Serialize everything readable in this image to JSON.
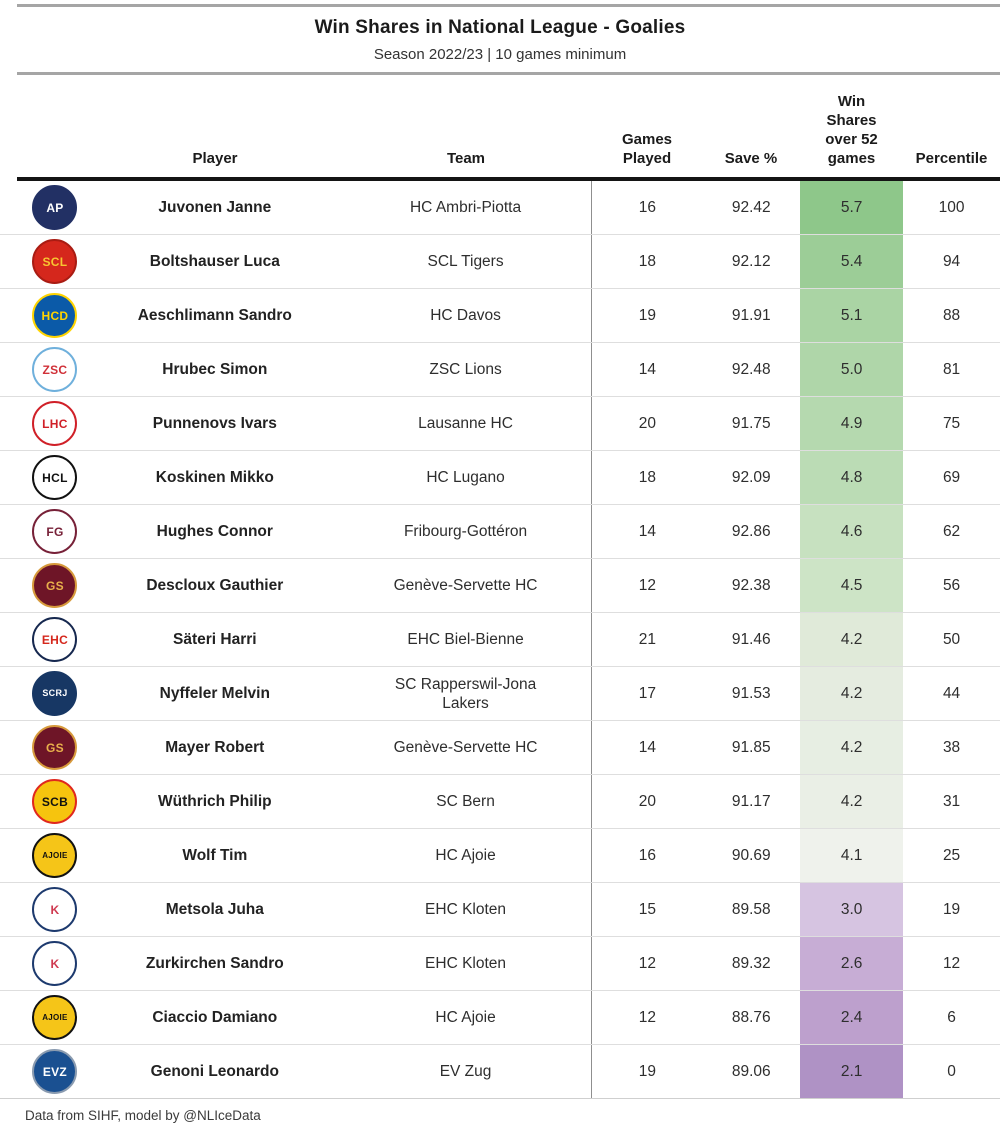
{
  "header": {
    "title": "Win Shares in National League - Goalies",
    "subtitle": "Season 2022/23 | 10 games minimum"
  },
  "column_headers": {
    "player": "Player",
    "team": "Team",
    "games_played": "Games\nPlayed",
    "save_pct": "Save %",
    "win_shares": "Win\nShares\nover 52\ngames",
    "percentile": "Percentile"
  },
  "footer": {
    "source": "Data from SIHF, model by @NLIceData"
  },
  "chart_data": {
    "type": "table",
    "title": "Win Shares in National League - Goalies",
    "subtitle": "Season 2022/23 | 10 games minimum",
    "columns": [
      "Player",
      "Team",
      "Games Played",
      "Save %",
      "Win Shares over 52 games",
      "Percentile"
    ],
    "color_scale": {
      "description": "Win Shares cell fill: green = high, near-white = middle, purple = low",
      "high": "#8ec78a",
      "mid": "#eef2eb",
      "low": "#af92c5"
    },
    "rows": [
      {
        "player": "Juvonen Janne",
        "team": "HC Ambri-Piotta",
        "games_played": 16,
        "save_pct": "92.42",
        "win_shares": "5.7",
        "percentile": 100,
        "ws_color": "#8ec78a",
        "logo": {
          "abbr": "AP",
          "bg": "#223064",
          "fg": "#ffffff",
          "border": "#223064"
        }
      },
      {
        "player": "Boltshauser Luca",
        "team": "SCL Tigers",
        "games_played": 18,
        "save_pct": "92.12",
        "win_shares": "5.4",
        "percentile": 94,
        "ws_color": "#9ccd97",
        "logo": {
          "abbr": "SCL",
          "bg": "#d5271c",
          "fg": "#f7c631",
          "border": "#a91c13"
        }
      },
      {
        "player": "Aeschlimann Sandro",
        "team": "HC Davos",
        "games_played": 19,
        "save_pct": "91.91",
        "win_shares": "5.1",
        "percentile": 88,
        "ws_color": "#aad4a4",
        "logo": {
          "abbr": "HCD",
          "bg": "#0b5aa8",
          "fg": "#ffd400",
          "border": "#ffd400"
        }
      },
      {
        "player": "Hrubec Simon",
        "team": "ZSC Lions",
        "games_played": 14,
        "save_pct": "92.48",
        "win_shares": "5.0",
        "percentile": 81,
        "ws_color": "#afd6a9",
        "logo": {
          "abbr": "ZSC",
          "bg": "#ffffff",
          "fg": "#d03038",
          "border": "#6fb0dc"
        }
      },
      {
        "player": "Punnenovs Ivars",
        "team": "Lausanne HC",
        "games_played": 20,
        "save_pct": "91.75",
        "win_shares": "4.9",
        "percentile": 75,
        "ws_color": "#b5d9af",
        "logo": {
          "abbr": "LHC",
          "bg": "#ffffff",
          "fg": "#d02028",
          "border": "#d02028"
        }
      },
      {
        "player": "Koskinen Mikko",
        "team": "HC Lugano",
        "games_played": 18,
        "save_pct": "92.09",
        "win_shares": "4.8",
        "percentile": 69,
        "ws_color": "#bbdcb5",
        "logo": {
          "abbr": "HCL",
          "bg": "#ffffff",
          "fg": "#111111",
          "border": "#111111"
        }
      },
      {
        "player": "Hughes Connor",
        "team": "Fribourg-Gottéron",
        "games_played": 14,
        "save_pct": "92.86",
        "win_shares": "4.6",
        "percentile": 62,
        "ws_color": "#c7e1c0",
        "logo": {
          "abbr": "FG",
          "bg": "#ffffff",
          "fg": "#772138",
          "border": "#772138"
        }
      },
      {
        "player": "Descloux Gauthier",
        "team": "Genève-Servette HC",
        "games_played": 12,
        "save_pct": "92.38",
        "win_shares": "4.5",
        "percentile": 56,
        "ws_color": "#cde4c6",
        "logo": {
          "abbr": "GS",
          "bg": "#6e1527",
          "fg": "#e8b04b",
          "border": "#d79a3c"
        }
      },
      {
        "player": "Säteri Harri",
        "team": "EHC Biel-Bienne",
        "games_played": 21,
        "save_pct": "91.46",
        "win_shares": "4.2",
        "percentile": 50,
        "ws_color": "#e0ead9",
        "logo": {
          "abbr": "EHC",
          "bg": "#ffffff",
          "fg": "#d5271c",
          "border": "#16284f"
        }
      },
      {
        "player": "Nyffeler Melvin",
        "team": "SC Rapperswil-Jona Lakers",
        "games_played": 17,
        "save_pct": "91.53",
        "win_shares": "4.2",
        "percentile": 44,
        "ws_color": "#e5ece0",
        "logo": {
          "abbr": "SCRJ",
          "bg": "#173764",
          "fg": "#ffffff",
          "border": "#173764"
        }
      },
      {
        "player": "Mayer Robert",
        "team": "Genève-Servette HC",
        "games_played": 14,
        "save_pct": "91.85",
        "win_shares": "4.2",
        "percentile": 38,
        "ws_color": "#e7eee3",
        "logo": {
          "abbr": "GS",
          "bg": "#6e1527",
          "fg": "#e8b04b",
          "border": "#d79a3c"
        }
      },
      {
        "player": "Wüthrich Philip",
        "team": "SC Bern",
        "games_played": 20,
        "save_pct": "91.17",
        "win_shares": "4.2",
        "percentile": 31,
        "ws_color": "#eaefe6",
        "logo": {
          "abbr": "SCB",
          "bg": "#f6c40e",
          "fg": "#111111",
          "border": "#e0281e"
        }
      },
      {
        "player": "Wolf Tim",
        "team": "HC Ajoie",
        "games_played": 16,
        "save_pct": "90.69",
        "win_shares": "4.1",
        "percentile": 25,
        "ws_color": "#eff2ec",
        "logo": {
          "abbr": "AJOIE",
          "bg": "#f5c518",
          "fg": "#111111",
          "border": "#111111"
        }
      },
      {
        "player": "Metsola Juha",
        "team": "EHC Kloten",
        "games_played": 15,
        "save_pct": "89.58",
        "win_shares": "3.0",
        "percentile": 19,
        "ws_color": "#d6c4e1",
        "logo": {
          "abbr": "K",
          "bg": "#ffffff",
          "fg": "#cf3a50",
          "border": "#1d3a6e"
        }
      },
      {
        "player": "Zurkirchen Sandro",
        "team": "EHC Kloten",
        "games_played": 12,
        "save_pct": "89.32",
        "win_shares": "2.6",
        "percentile": 12,
        "ws_color": "#c7add5",
        "logo": {
          "abbr": "K",
          "bg": "#ffffff",
          "fg": "#cf3a50",
          "border": "#1d3a6e"
        }
      },
      {
        "player": "Ciaccio Damiano",
        "team": "HC Ajoie",
        "games_played": 12,
        "save_pct": "88.76",
        "win_shares": "2.4",
        "percentile": 6,
        "ws_color": "#bda0cd",
        "logo": {
          "abbr": "AJOIE",
          "bg": "#f5c518",
          "fg": "#111111",
          "border": "#111111"
        }
      },
      {
        "player": "Genoni Leonardo",
        "team": "EV Zug",
        "games_played": 19,
        "save_pct": "89.06",
        "win_shares": "2.1",
        "percentile": 0,
        "ws_color": "#af92c5",
        "logo": {
          "abbr": "EVZ",
          "bg": "#1a5091",
          "fg": "#ffffff",
          "border": "#8a9bb0"
        }
      }
    ]
  }
}
